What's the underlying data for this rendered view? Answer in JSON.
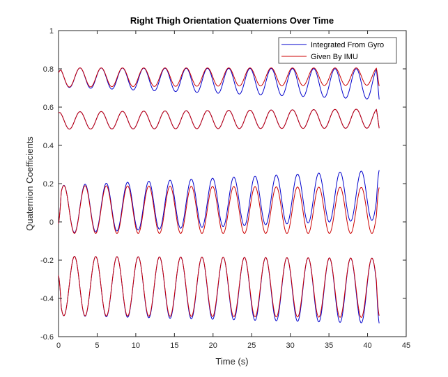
{
  "chart_data": {
    "type": "line",
    "title": "Right Thigh Orientation Quaternions Over Time",
    "xlabel": "Time (s)",
    "ylabel": "Quaternion Coefficients",
    "xlim": [
      0,
      45
    ],
    "ylim": [
      -0.6,
      1
    ],
    "xticks": [
      0,
      5,
      10,
      15,
      20,
      25,
      30,
      35,
      40,
      45
    ],
    "yticks": [
      -0.6,
      -0.4,
      -0.2,
      0,
      0.2,
      0.4,
      0.6,
      0.8,
      1
    ],
    "ytick_labels": [
      "-0.6",
      "-0.4",
      "-0.2",
      "0",
      "0.2",
      "0.4",
      "0.6",
      "0.8",
      "1"
    ],
    "grid": false,
    "legend_position": "top-right",
    "colors": {
      "gyro": "#0000cc",
      "imu": "#cc0000",
      "axis": "#262626"
    },
    "series": [
      {
        "name": "Integrated From Gyro",
        "color": "#0000cc",
        "components": [
          {
            "start": 0.78,
            "end": 0.64,
            "period": 2.75,
            "amp_start": 0.05,
            "amp_end": 0.08,
            "mean_start": 0.755,
            "mean_end": 0.72,
            "phase": 1.5,
            "t_end": 41.5
          },
          {
            "start": 0.57,
            "end": 0.49,
            "period": 2.75,
            "amp_start": 0.045,
            "amp_end": 0.05,
            "mean_start": 0.53,
            "mean_end": 0.54,
            "phase": 1.5,
            "t_end": 41.5
          },
          {
            "start": -0.01,
            "end": 0.27,
            "period": 2.75,
            "amp_start": 0.125,
            "amp_end": 0.13,
            "mean_start": 0.065,
            "mean_end": 0.14,
            "phase": 0.0,
            "t_end": 41.5
          },
          {
            "start": -0.28,
            "end": -0.53,
            "period": 2.75,
            "amp_start": 0.155,
            "amp_end": 0.17,
            "mean_start": -0.335,
            "mean_end": -0.36,
            "phase": 3.14,
            "t_end": 41.5
          }
        ]
      },
      {
        "name": "Given By IMU",
        "color": "#cc0000",
        "components": [
          {
            "start": 0.78,
            "end": 0.71,
            "period": 2.75,
            "amp_start": 0.05,
            "amp_end": 0.045,
            "mean_start": 0.755,
            "mean_end": 0.76,
            "phase": 1.5,
            "t_end": 41.5
          },
          {
            "start": 0.57,
            "end": 0.49,
            "period": 2.75,
            "amp_start": 0.045,
            "amp_end": 0.05,
            "mean_start": 0.53,
            "mean_end": 0.54,
            "phase": 1.5,
            "t_end": 41.5
          },
          {
            "start": -0.01,
            "end": 0.18,
            "period": 2.75,
            "amp_start": 0.125,
            "amp_end": 0.12,
            "mean_start": 0.065,
            "mean_end": 0.06,
            "phase": 0.0,
            "t_end": 41.5
          },
          {
            "start": -0.28,
            "end": -0.49,
            "period": 2.75,
            "amp_start": 0.155,
            "amp_end": 0.155,
            "mean_start": -0.335,
            "mean_end": -0.345,
            "phase": 3.14,
            "t_end": 41.5
          }
        ]
      }
    ]
  }
}
